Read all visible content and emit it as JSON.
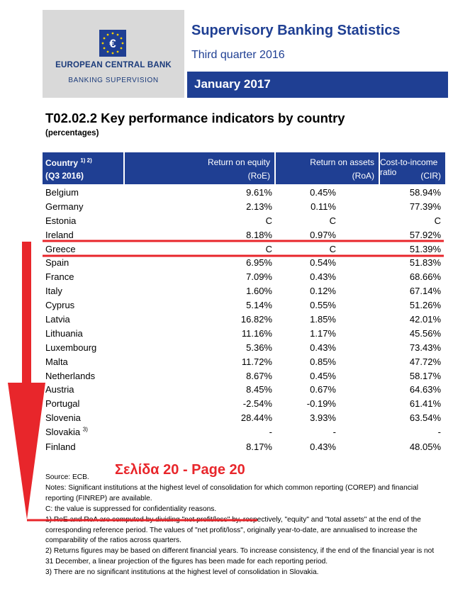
{
  "header": {
    "bank_name": "EUROPEAN CENTRAL BANK",
    "bank_sub": "BANKING SUPERVISION",
    "title": "Supervisory Banking Statistics",
    "subtitle": "Third quarter 2016",
    "date": "January 2017",
    "brand_color": "#1f3f93",
    "logo_icon": "euro-stars-icon"
  },
  "table": {
    "title": "T02.02.2 Key performance indicators by country",
    "subtitle": "(percentages)",
    "headers": [
      {
        "line1": "Country",
        "sup": "1) 2)",
        "line2": "(Q3 2016)"
      },
      {
        "line1": "Return on equity",
        "line2": "(RoE)"
      },
      {
        "line1": "Return on assets",
        "line2": "(RoA)"
      },
      {
        "line1": "Cost-to-income ratio",
        "line2": "(CIR)"
      }
    ],
    "rows": [
      {
        "country": "Belgium",
        "sup": "",
        "roe": "9.61%",
        "roa": "0.45%",
        "cir": "58.94%"
      },
      {
        "country": "Germany",
        "sup": "",
        "roe": "2.13%",
        "roa": "0.11%",
        "cir": "77.39%"
      },
      {
        "country": "Estonia",
        "sup": "",
        "roe": "C",
        "roa": "C",
        "cir": "C"
      },
      {
        "country": "Ireland",
        "sup": "",
        "roe": "8.18%",
        "roa": "0.97%",
        "cir": "57.92%"
      },
      {
        "country": "Greece",
        "sup": "",
        "roe": "C",
        "roa": "C",
        "cir": "51.39%"
      },
      {
        "country": "Spain",
        "sup": "",
        "roe": "6.95%",
        "roa": "0.54%",
        "cir": "51.83%"
      },
      {
        "country": "France",
        "sup": "",
        "roe": "7.09%",
        "roa": "0.43%",
        "cir": "68.66%"
      },
      {
        "country": "Italy",
        "sup": "",
        "roe": "1.60%",
        "roa": "0.12%",
        "cir": "67.14%"
      },
      {
        "country": "Cyprus",
        "sup": "",
        "roe": "5.14%",
        "roa": "0.55%",
        "cir": "51.26%"
      },
      {
        "country": "Latvia",
        "sup": "",
        "roe": "16.82%",
        "roa": "1.85%",
        "cir": "42.01%"
      },
      {
        "country": "Lithuania",
        "sup": "",
        "roe": "11.16%",
        "roa": "1.17%",
        "cir": "45.56%"
      },
      {
        "country": "Luxembourg",
        "sup": "",
        "roe": "5.36%",
        "roa": "0.43%",
        "cir": "73.43%"
      },
      {
        "country": "Malta",
        "sup": "",
        "roe": "11.72%",
        "roa": "0.85%",
        "cir": "47.72%"
      },
      {
        "country": "Netherlands",
        "sup": "",
        "roe": "8.67%",
        "roa": "0.45%",
        "cir": "58.17%"
      },
      {
        "country": "Austria",
        "sup": "",
        "roe": "8.45%",
        "roa": "0.67%",
        "cir": "64.63%"
      },
      {
        "country": "Portugal",
        "sup": "",
        "roe": "-2.54%",
        "roa": "-0.19%",
        "cir": "61.41%"
      },
      {
        "country": "Slovenia",
        "sup": "",
        "roe": "28.44%",
        "roa": "3.93%",
        "cir": "63.54%"
      },
      {
        "country": "Slovakia",
        "sup": "3)",
        "roe": "-",
        "roa": "-",
        "cir": "-"
      },
      {
        "country": "Finland",
        "sup": "",
        "roe": "8.17%",
        "roa": "0.43%",
        "cir": "48.05%"
      }
    ]
  },
  "notes": {
    "source": "Source: ECB.",
    "notes_text": "Notes: Significant institutions at the highest level of consolidation for which common reporting (COREP) and financial reporting (FINREP) are available.",
    "c_note": "C: the value is suppressed for confidentiality reasons.",
    "note1": "1) RoE and RoA are computed by dividing \"net profit/loss\" by, respectively, \"equity\" and \"total assets\" at the end of the corresponding reference period. The values of \"net profit/loss\", originally year-to-date, are annualised to increase the comparability of the ratios across quarters.",
    "note2": "2) Returns figures may be based on different financial years. To increase consistency, if the end of the financial year is not 31 December, a linear projection of the figures has been made for each reporting period.",
    "note3": "3) There are no significant institutions at the highest level of consolidation in Slovakia."
  },
  "annotation": {
    "page_label": "Σελίδα 20 - Page 20",
    "color": "#e8262b"
  }
}
